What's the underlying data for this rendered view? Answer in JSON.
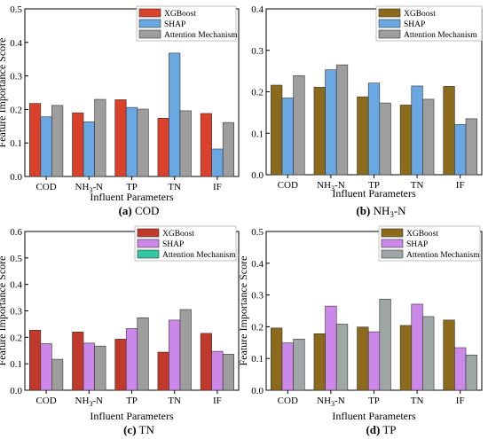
{
  "colors": {
    "a": [
      "#d9412b",
      "#6aa8e3",
      "#9e9e9e"
    ],
    "b": [
      "#8b6a1c",
      "#6aa8e3",
      "#9e9e9e"
    ],
    "c": [
      "#c0392b",
      "#cc88e8",
      "#9e9e9e"
    ],
    "d": [
      "#8b6a1c",
      "#cc88e8",
      "#9ea7a5"
    ],
    "legend_border": [
      "#d9412b",
      "#6aa8e3",
      "#9e9e9e",
      "#8b6a1c",
      "#cc88e8"
    ]
  },
  "legend_swatch_colors": {
    "a": [
      "#d9412b",
      "#6aa8e3",
      "#9e9e9e"
    ],
    "b": [
      "#8b6a1c",
      "#6aa8e3",
      "#9e9e9e"
    ],
    "c": [
      "#c0392b",
      "#cc88e8",
      "#30c8a0"
    ],
    "d": [
      "#8b6a1c",
      "#cc88e8",
      "#9ea7a5"
    ]
  },
  "chart_data": [
    {
      "panel": "a",
      "type": "bar",
      "caption_prefix": "(a)",
      "caption_rest": " COD",
      "xlabel": "Influent Parameters",
      "ylabel": "Feature Importance Score",
      "categories": [
        "COD",
        "NH3-N",
        "TP",
        "TN",
        "IF"
      ],
      "ylim": [
        0,
        0.5
      ],
      "yticks": [
        "0.0",
        "0.1",
        "0.2",
        "0.3",
        "0.4",
        "0.5"
      ],
      "series": [
        {
          "name": "XGBoost",
          "values": [
            0.218,
            0.19,
            0.229,
            0.174,
            0.188
          ]
        },
        {
          "name": "SHAP",
          "values": [
            0.178,
            0.163,
            0.206,
            0.368,
            0.082
          ]
        },
        {
          "name": "Attention Mechanism",
          "values": [
            0.212,
            0.23,
            0.201,
            0.196,
            0.161
          ]
        }
      ]
    },
    {
      "panel": "b",
      "type": "bar",
      "caption_prefix": "(b)",
      "caption_rest": " NH3-N",
      "xlabel": "Influent Parameters",
      "ylabel": "",
      "categories": [
        "COD",
        "NH3-N",
        "TP",
        "TN",
        "IF"
      ],
      "ylim": [
        0,
        0.4
      ],
      "yticks": [
        "0.0",
        "0.1",
        "0.2",
        "0.3",
        "0.4"
      ],
      "series": [
        {
          "name": "XGBoost",
          "values": [
            0.216,
            0.211,
            0.188,
            0.168,
            0.213
          ]
        },
        {
          "name": "SHAP",
          "values": [
            0.185,
            0.253,
            0.221,
            0.214,
            0.121
          ]
        },
        {
          "name": "Attention Mechanism",
          "values": [
            0.239,
            0.265,
            0.173,
            0.182,
            0.135
          ]
        }
      ]
    },
    {
      "panel": "c",
      "type": "bar",
      "caption_prefix": "(c)",
      "caption_rest": " TN",
      "xlabel": "Influent Parameters",
      "ylabel": "Feature Importance Score",
      "categories": [
        "COD",
        "NH3-N",
        "TP",
        "TN",
        "IF"
      ],
      "ylim": [
        0,
        0.6
      ],
      "yticks": [
        "0.0",
        "0.1",
        "0.2",
        "0.3",
        "0.4",
        "0.5",
        "0.6"
      ],
      "series": [
        {
          "name": "XGBoost",
          "values": [
            0.227,
            0.22,
            0.193,
            0.144,
            0.215
          ]
        },
        {
          "name": "SHAP",
          "values": [
            0.176,
            0.178,
            0.233,
            0.265,
            0.147
          ]
        },
        {
          "name": "Attention Mechanism",
          "values": [
            0.117,
            0.167,
            0.274,
            0.305,
            0.136
          ]
        }
      ]
    },
    {
      "panel": "d",
      "type": "bar",
      "caption_prefix": "(d)",
      "caption_rest": " TP",
      "xlabel": "Influent Parameters",
      "ylabel": "Feature Importance Score",
      "categories": [
        "COD",
        "NH3-N",
        "TP",
        "TN",
        "IF"
      ],
      "ylim": [
        0,
        0.5
      ],
      "yticks": [
        "0.0",
        "0.1",
        "0.2",
        "0.3",
        "0.4",
        "0.5"
      ],
      "series": [
        {
          "name": "XGBoost",
          "values": [
            0.196,
            0.178,
            0.199,
            0.204,
            0.221
          ]
        },
        {
          "name": "SHAP",
          "values": [
            0.149,
            0.265,
            0.184,
            0.271,
            0.134
          ]
        },
        {
          "name": "Attention Mechanism",
          "values": [
            0.161,
            0.208,
            0.287,
            0.232,
            0.111
          ]
        }
      ]
    }
  ]
}
